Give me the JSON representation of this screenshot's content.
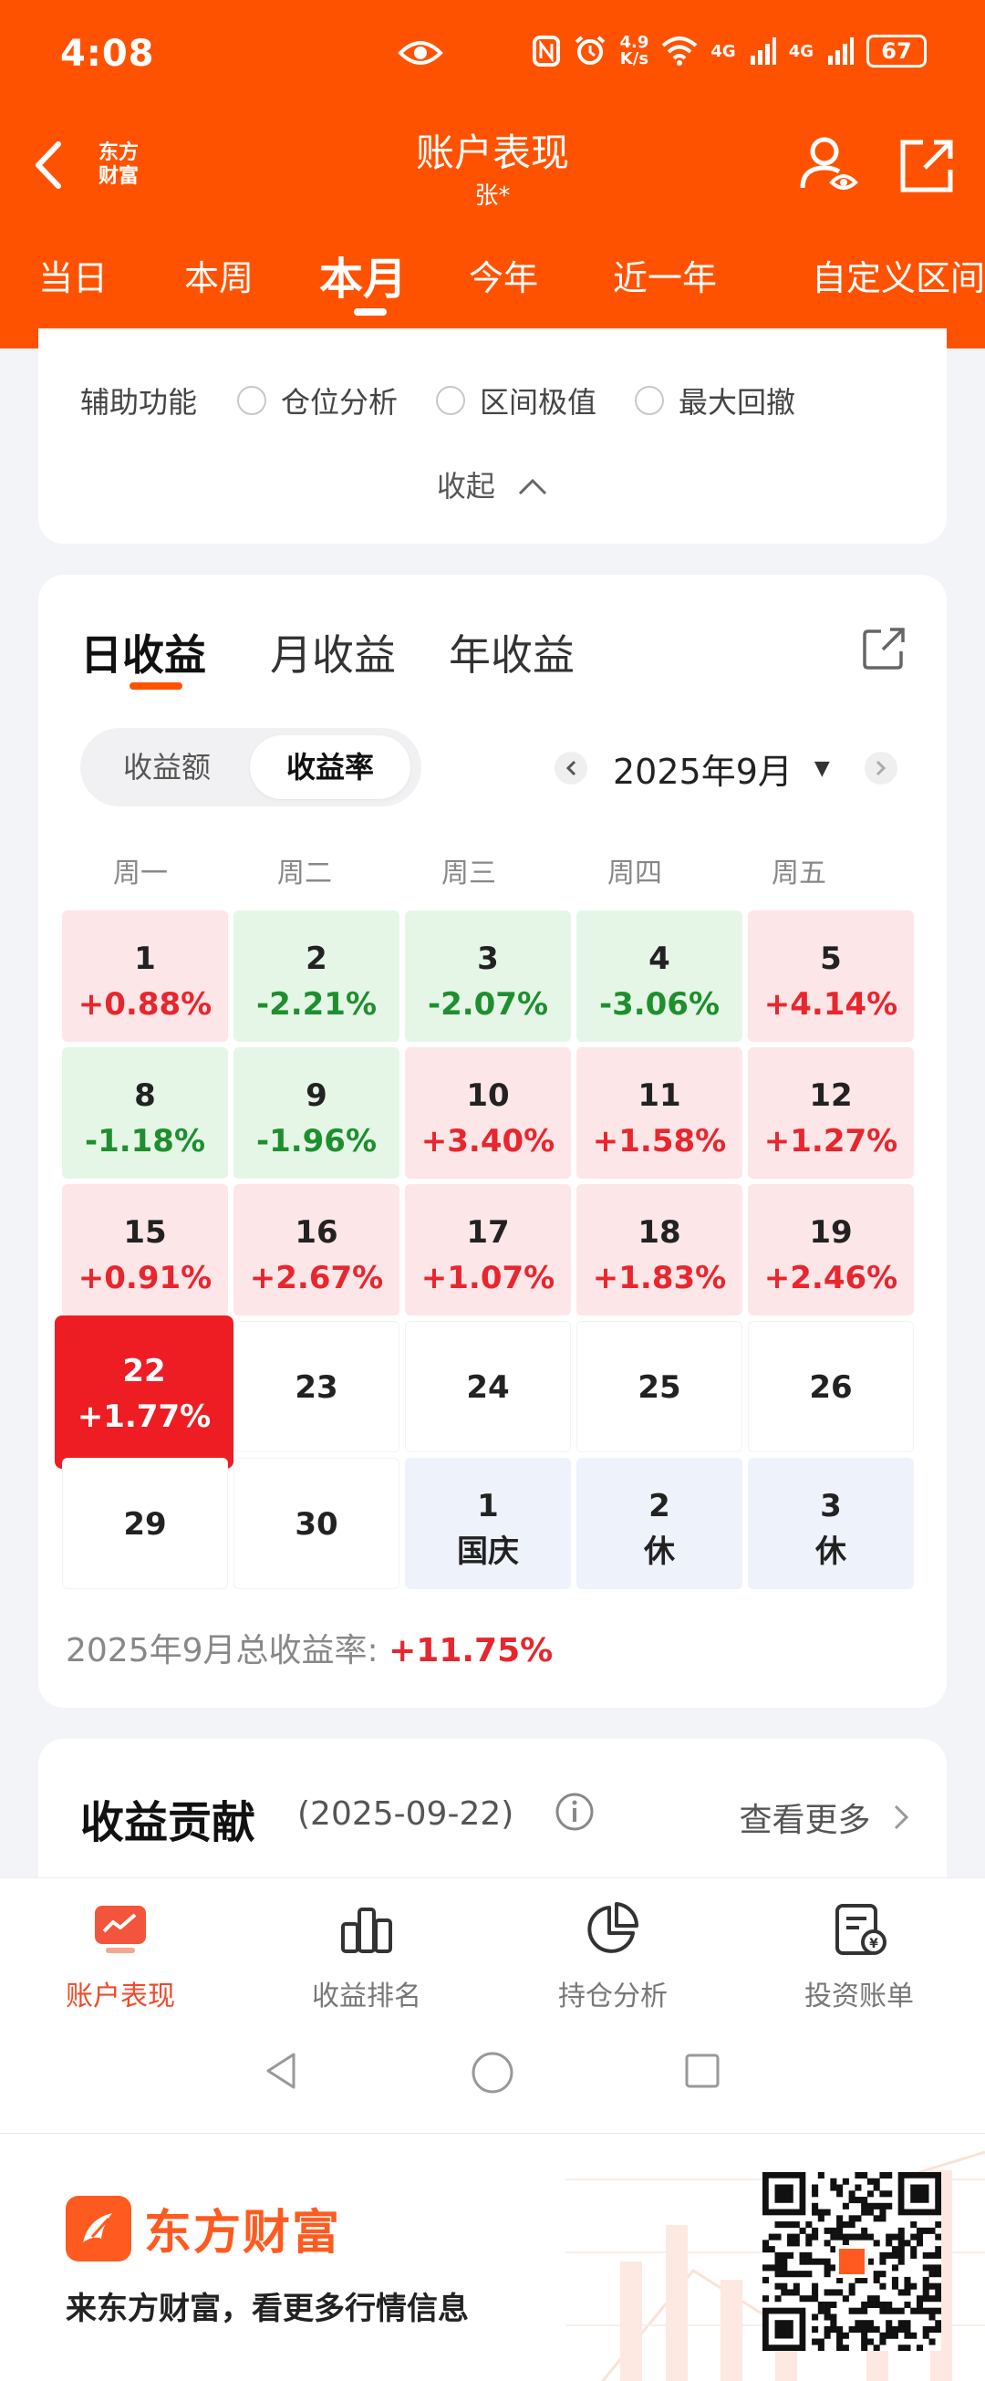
{
  "statusbar": {
    "time": "4:08",
    "speed_top": "4.9",
    "speed_bottom": "K/s",
    "net1": "4G",
    "net2": "4G",
    "battery": "67"
  },
  "titlebar": {
    "logo_line1": "东方",
    "logo_line2": "财富",
    "title": "账户表现",
    "subtitle": "张*"
  },
  "period_tabs": [
    "当日",
    "本周",
    "本月",
    "今年",
    "近一年",
    "自定义区间"
  ],
  "aux": {
    "label": "辅助功能",
    "options": [
      "仓位分析",
      "区间极值",
      "最大回撤"
    ],
    "collapse": "收起"
  },
  "earnings": {
    "tabs": [
      "日收益",
      "月收益",
      "年收益"
    ],
    "segments": [
      "收益额",
      "收益率"
    ],
    "month": "2025年9月",
    "weekdays": [
      "周一",
      "周二",
      "周三",
      "周四",
      "周五"
    ],
    "calendar": [
      {
        "day": "1",
        "value": "+0.88%"
      },
      {
        "day": "2",
        "value": "-2.21%"
      },
      {
        "day": "3",
        "value": "-2.07%"
      },
      {
        "day": "4",
        "value": "-3.06%"
      },
      {
        "day": "5",
        "value": "+4.14%"
      },
      {
        "day": "8",
        "value": "-1.18%"
      },
      {
        "day": "9",
        "value": "-1.96%"
      },
      {
        "day": "10",
        "value": "+3.40%"
      },
      {
        "day": "11",
        "value": "+1.58%"
      },
      {
        "day": "12",
        "value": "+1.27%"
      },
      {
        "day": "15",
        "value": "+0.91%"
      },
      {
        "day": "16",
        "value": "+2.67%"
      },
      {
        "day": "17",
        "value": "+1.07%"
      },
      {
        "day": "18",
        "value": "+1.83%"
      },
      {
        "day": "19",
        "value": "+2.46%"
      },
      {
        "day": "22",
        "value": "+1.77%"
      },
      {
        "day": "23",
        "value": ""
      },
      {
        "day": "24",
        "value": ""
      },
      {
        "day": "25",
        "value": ""
      },
      {
        "day": "26",
        "value": ""
      },
      {
        "day": "29",
        "value": ""
      },
      {
        "day": "30",
        "value": ""
      },
      {
        "day": "1",
        "value": "国庆"
      },
      {
        "day": "2",
        "value": "休"
      },
      {
        "day": "3",
        "value": "休"
      }
    ],
    "total_label": "2025年9月总收益率:",
    "total_value": "+11.75%"
  },
  "contribution": {
    "title": "收益贡献",
    "date": "(2025-09-22)",
    "more": "查看更多"
  },
  "bottom_nav": [
    "账户表现",
    "收益排名",
    "持仓分析",
    "投资账单"
  ],
  "footer": {
    "brand": "东方财富",
    "slogan": "来东方财富，看更多行情信息"
  },
  "colors": {
    "header": "#ff5200",
    "up": "#e8262d",
    "down": "#1e8f2e",
    "selected": "#ee1d23"
  }
}
